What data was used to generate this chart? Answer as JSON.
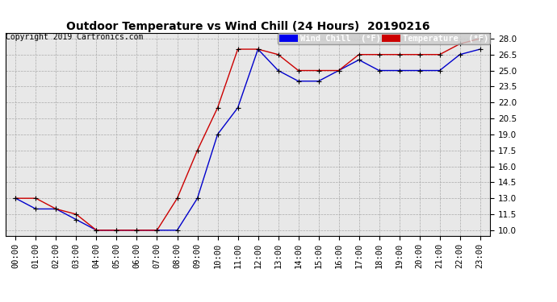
{
  "title": "Outdoor Temperature vs Wind Chill (24 Hours)  20190216",
  "copyright": "Copyright 2019 Cartronics.com",
  "legend_wind_chill": "Wind Chill  (°F)",
  "legend_temperature": "Temperature  (°F)",
  "hours": [
    0,
    1,
    2,
    3,
    4,
    5,
    6,
    7,
    8,
    9,
    10,
    11,
    12,
    13,
    14,
    15,
    16,
    17,
    18,
    19,
    20,
    21,
    22,
    23
  ],
  "temperature": [
    13.0,
    13.0,
    12.0,
    11.5,
    10.0,
    10.0,
    10.0,
    10.0,
    13.0,
    17.5,
    21.5,
    27.0,
    27.0,
    26.5,
    25.0,
    25.0,
    25.0,
    26.5,
    26.5,
    26.5,
    26.5,
    26.5,
    27.5,
    28.0
  ],
  "wind_chill": [
    13.0,
    12.0,
    12.0,
    11.0,
    10.0,
    10.0,
    10.0,
    10.0,
    10.0,
    13.0,
    19.0,
    21.5,
    27.0,
    25.0,
    24.0,
    24.0,
    25.0,
    26.0,
    25.0,
    25.0,
    25.0,
    25.0,
    26.5,
    27.0
  ],
  "ylim_min": 9.5,
  "ylim_max": 28.5,
  "yticks": [
    10.0,
    11.5,
    13.0,
    14.5,
    16.0,
    17.5,
    19.0,
    20.5,
    22.0,
    23.5,
    25.0,
    26.5,
    28.0
  ],
  "temp_color": "#cc0000",
  "wind_color": "#0000cc",
  "bg_color": "#e8e8e8",
  "grid_color": "#aaaaaa",
  "marker": "+",
  "marker_color": "#000000",
  "title_fontsize": 10,
  "copyright_fontsize": 7,
  "tick_fontsize": 7.5,
  "legend_fontsize": 7.5,
  "legend_wind_bg": "#0000ee",
  "legend_temp_bg": "#cc0000"
}
